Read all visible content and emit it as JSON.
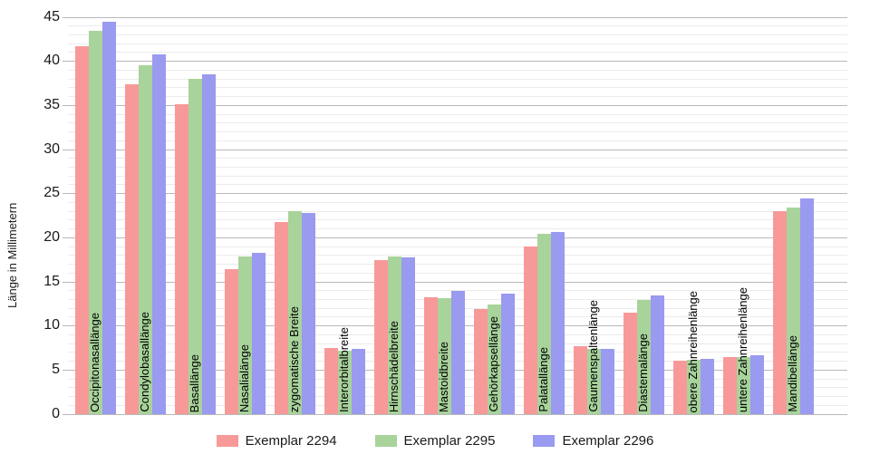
{
  "chart_data": {
    "type": "bar",
    "title": "",
    "ylabel": "Länge in Millimetern",
    "xlabel": "",
    "ylim": [
      0,
      45
    ],
    "yticks": [
      0,
      5,
      10,
      15,
      20,
      25,
      30,
      35,
      40,
      45
    ],
    "grid": "horizontal, minor every 1 unit, major every 5 units",
    "legend_position": "bottom-center",
    "categories": [
      "Occipitonasallänge",
      "Condylobasallänge",
      "Basallänge",
      "Nasalialänge",
      "zygomatische Breite",
      "Interorbitalbreite",
      "Hirnschädelbreite",
      "Mastoidbreite",
      "Gehörkapsellänge",
      "Palatallänge",
      "Gaumenspaltenlänge",
      "Diastemalänge",
      "obere Zahnreihenlänge",
      "untere Zahnreihenlänge",
      "Mandibellänge"
    ],
    "series": [
      {
        "name": "Exemplar 2294",
        "color": "#F79999",
        "values": [
          41.7,
          37.4,
          35.1,
          16.4,
          21.8,
          7.5,
          17.5,
          13.3,
          11.9,
          19.0,
          7.7,
          11.5,
          6.1,
          6.5,
          23.0
        ]
      },
      {
        "name": "Exemplar 2295",
        "color": "#A8D39B",
        "values": [
          43.5,
          39.6,
          38.0,
          17.9,
          23.0,
          7.2,
          17.9,
          13.1,
          12.4,
          20.4,
          7.4,
          12.9,
          6.2,
          6.5,
          23.4
        ]
      },
      {
        "name": "Exemplar 2296",
        "color": "#9A9AF0",
        "values": [
          44.5,
          40.8,
          38.5,
          18.3,
          22.8,
          7.4,
          17.8,
          14.0,
          13.7,
          20.6,
          7.4,
          13.5,
          6.3,
          6.7,
          24.5
        ]
      }
    ],
    "colors": {
      "minor_gridline": "#ebebeb",
      "major_gridline": "#b9b9b9",
      "background": "#ffffff",
      "text": "#1a1a1a"
    }
  }
}
